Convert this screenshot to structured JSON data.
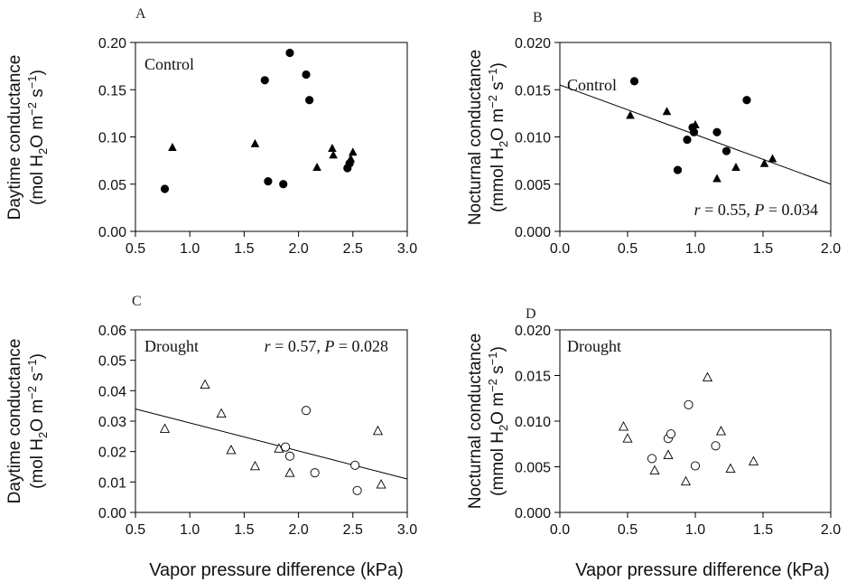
{
  "figure": {
    "xlabel_bottom": "Vapor pressure difference (kPa)"
  },
  "chart_data": [
    {
      "panel": "A",
      "type": "scatter",
      "annotation": "Control",
      "ylabel_line1": "Daytime conductance",
      "ylabel_line2": "(mol H2O m-2 s-1)",
      "ylabel_unit_base": "mol",
      "xlim": [
        0.5,
        3.0
      ],
      "ylim": [
        0.0,
        0.2
      ],
      "xticks": [
        "0.5",
        "1.0",
        "1.5",
        "2.0",
        "2.5",
        "3.0"
      ],
      "yticks": [
        "0.00",
        "0.05",
        "0.10",
        "0.15",
        "0.20"
      ],
      "series": [
        {
          "marker": "filled-circle",
          "points": [
            [
              0.77,
              0.045
            ],
            [
              1.69,
              0.16
            ],
            [
              1.72,
              0.053
            ],
            [
              1.86,
              0.05
            ],
            [
              1.92,
              0.189
            ],
            [
              2.07,
              0.166
            ],
            [
              2.1,
              0.139
            ],
            [
              2.45,
              0.067
            ],
            [
              2.47,
              0.072
            ]
          ]
        },
        {
          "marker": "filled-triangle",
          "points": [
            [
              0.84,
              0.089
            ],
            [
              1.6,
              0.093
            ],
            [
              2.17,
              0.068
            ],
            [
              2.31,
              0.088
            ],
            [
              2.32,
              0.081
            ],
            [
              2.48,
              0.077
            ],
            [
              2.5,
              0.084
            ]
          ]
        }
      ],
      "fit": null
    },
    {
      "panel": "B",
      "type": "scatter",
      "annotation": "Control",
      "ylabel_line1": "Nocturnal conductance",
      "ylabel_line2": "(mmol H2O m-2 s-1)",
      "ylabel_unit_base": "mmol",
      "xlim": [
        0.0,
        2.0
      ],
      "ylim": [
        0.0,
        0.02
      ],
      "xticks": [
        "0.0",
        "0.5",
        "1.0",
        "1.5",
        "2.0"
      ],
      "yticks": [
        "0.000",
        "0.005",
        "0.010",
        "0.015",
        "0.020"
      ],
      "series": [
        {
          "marker": "filled-circle",
          "points": [
            [
              0.55,
              0.0159
            ],
            [
              0.87,
              0.0065
            ],
            [
              0.94,
              0.0097
            ],
            [
              0.98,
              0.011
            ],
            [
              0.99,
              0.0105
            ],
            [
              1.16,
              0.0105
            ],
            [
              1.23,
              0.0085
            ],
            [
              1.38,
              0.0139
            ]
          ]
        },
        {
          "marker": "filled-triangle",
          "points": [
            [
              0.52,
              0.0123
            ],
            [
              0.79,
              0.0127
            ],
            [
              1.0,
              0.0113
            ],
            [
              1.16,
              0.0056
            ],
            [
              1.3,
              0.0068
            ],
            [
              1.51,
              0.0072
            ],
            [
              1.57,
              0.0077
            ]
          ]
        }
      ],
      "fit": {
        "x": [
          0.0,
          2.0
        ],
        "y": [
          0.0155,
          0.005
        ]
      },
      "stats": {
        "r": "0.55",
        "p": "0.034"
      }
    },
    {
      "panel": "C",
      "type": "scatter",
      "annotation": "Drought",
      "ylabel_line1": "Daytime conductance",
      "ylabel_line2": "(mol H2O m-2 s-1)",
      "ylabel_unit_base": "mol",
      "xlim": [
        0.5,
        3.0
      ],
      "ylim": [
        0.0,
        0.06
      ],
      "xticks": [
        "0.5",
        "1.0",
        "1.5",
        "2.0",
        "2.5",
        "3.0"
      ],
      "yticks": [
        "0.00",
        "0.01",
        "0.02",
        "0.03",
        "0.04",
        "0.05",
        "0.06"
      ],
      "series": [
        {
          "marker": "open-circle",
          "points": [
            [
              1.88,
              0.0215
            ],
            [
              1.92,
              0.0185
            ],
            [
              2.07,
              0.0335
            ],
            [
              2.15,
              0.013
            ],
            [
              2.52,
              0.0155
            ],
            [
              2.54,
              0.0072
            ]
          ]
        },
        {
          "marker": "open-triangle",
          "points": [
            [
              0.77,
              0.0275
            ],
            [
              1.14,
              0.042
            ],
            [
              1.29,
              0.0325
            ],
            [
              1.38,
              0.0205
            ],
            [
              1.6,
              0.0152
            ],
            [
              1.82,
              0.021
            ],
            [
              1.92,
              0.013
            ],
            [
              2.73,
              0.0268
            ],
            [
              2.76,
              0.0092
            ]
          ]
        }
      ],
      "fit": {
        "x": [
          0.5,
          3.0
        ],
        "y": [
          0.034,
          0.011
        ]
      },
      "stats": {
        "r": "0.57",
        "p": "0.028"
      }
    },
    {
      "panel": "D",
      "type": "scatter",
      "annotation": "Drought",
      "ylabel_line1": "Nocturnal conductance",
      "ylabel_line2": "(mmol H2O m-2 s-1)",
      "ylabel_unit_base": "mmol",
      "xlim": [
        0.0,
        2.0
      ],
      "ylim": [
        0.0,
        0.02
      ],
      "xticks": [
        "0.0",
        "0.5",
        "1.0",
        "1.5",
        "2.0"
      ],
      "yticks": [
        "0.000",
        "0.005",
        "0.010",
        "0.015",
        "0.020"
      ],
      "series": [
        {
          "marker": "open-circle",
          "points": [
            [
              0.68,
              0.0059
            ],
            [
              0.8,
              0.0081
            ],
            [
              0.82,
              0.0086
            ],
            [
              0.95,
              0.0118
            ],
            [
              1.0,
              0.0051
            ],
            [
              1.15,
              0.0073
            ]
          ]
        },
        {
          "marker": "open-triangle",
          "points": [
            [
              0.47,
              0.0094
            ],
            [
              0.5,
              0.0081
            ],
            [
              0.7,
              0.0046
            ],
            [
              0.8,
              0.0063
            ],
            [
              0.93,
              0.0034
            ],
            [
              1.09,
              0.0148
            ],
            [
              1.19,
              0.0089
            ],
            [
              1.26,
              0.0048
            ],
            [
              1.43,
              0.0056
            ]
          ]
        }
      ],
      "fit": null
    }
  ]
}
